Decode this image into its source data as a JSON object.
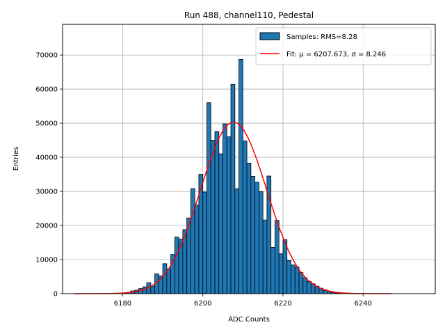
{
  "chart_data": {
    "type": "bar",
    "title": "Run 488, channel110, Pedestal",
    "xlabel": "ADC Counts",
    "ylabel": "Entries",
    "xlim": [
      6165,
      6258
    ],
    "ylim": [
      0,
      79000
    ],
    "xticks": [
      6180,
      6200,
      6220,
      6240
    ],
    "yticks": [
      0,
      10000,
      20000,
      30000,
      40000,
      50000,
      60000,
      70000
    ],
    "grid": true,
    "legend_position": "top-right",
    "legend": [
      {
        "label": "Samples: RMS=8.28",
        "kind": "patch",
        "color": "#1f77b4"
      },
      {
        "label": "Fit: μ = 6207.673, σ = 8.246",
        "kind": "line",
        "color": "#ff0000"
      }
    ],
    "histogram": {
      "name": "Samples: RMS=8.28",
      "color": "#1f77b4",
      "bin_width": 1,
      "bin_left_edges": [
        6180,
        6181,
        6182,
        6183,
        6184,
        6185,
        6186,
        6187,
        6188,
        6189,
        6190,
        6191,
        6192,
        6193,
        6194,
        6195,
        6196,
        6197,
        6198,
        6199,
        6200,
        6201,
        6202,
        6203,
        6204,
        6205,
        6206,
        6207,
        6208,
        6209,
        6210,
        6211,
        6212,
        6213,
        6214,
        6215,
        6216,
        6217,
        6218,
        6219,
        6220,
        6221,
        6222,
        6223,
        6224,
        6225,
        6226,
        6227,
        6228,
        6229,
        6230,
        6231,
        6232,
        6233,
        6234,
        6235,
        6236
      ],
      "counts": [
        200,
        400,
        800,
        1000,
        1500,
        2000,
        3200,
        2200,
        5800,
        5200,
        8800,
        7200,
        11500,
        16600,
        16000,
        18800,
        22200,
        30800,
        26000,
        35000,
        29800,
        56000,
        45000,
        47600,
        41000,
        49800,
        46000,
        61400,
        30800,
        68700,
        44800,
        38300,
        34400,
        32700,
        29900,
        21600,
        34500,
        13600,
        21500,
        11700,
        15800,
        9700,
        8400,
        7800,
        6200,
        4700,
        3600,
        2900,
        2200,
        1600,
        900,
        500,
        300,
        150,
        80,
        50,
        20
      ]
    },
    "fit": {
      "label": "Fit: μ = 6207.673, σ = 8.246",
      "color": "#ff0000",
      "mu": 6207.673,
      "sigma": 8.246,
      "amplitude": 50300,
      "x_range": [
        6168,
        6247
      ]
    }
  }
}
